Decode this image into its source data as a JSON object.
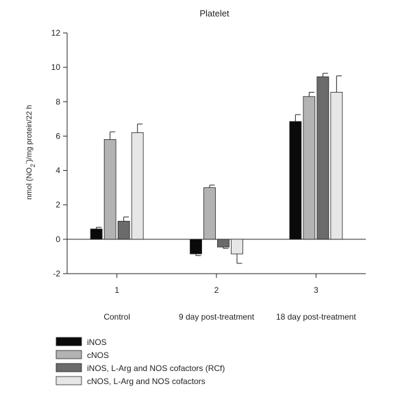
{
  "chart_data": {
    "type": "bar",
    "title": "Platelet",
    "xlabel": "",
    "ylabel_prefix": "nmol (NO",
    "ylabel_sub": "2",
    "ylabel_sup": "-",
    "ylabel_suffix": ")/mg protein/22 h",
    "ylim": [
      -2,
      12
    ],
    "yticks": [
      -2,
      0,
      2,
      4,
      6,
      8,
      10,
      12
    ],
    "categories": [
      "1",
      "2",
      "3"
    ],
    "category_sublabels": [
      "Control",
      "9 day post-treatment",
      "18 day post-treatment"
    ],
    "grid": false,
    "legend_position": "bottom-left",
    "series": [
      {
        "name": "iNOS",
        "color": "#0a0a0a",
        "values": [
          0.6,
          -0.85,
          6.85
        ],
        "errors": [
          0.1,
          0.1,
          0.4
        ]
      },
      {
        "name": "cNOS",
        "color": "#b3b3b3",
        "values": [
          5.8,
          3.0,
          8.3
        ],
        "errors": [
          0.45,
          0.15,
          0.25
        ]
      },
      {
        "name": "iNOS, L-Arg and NOS cofactors (RCf)",
        "color": "#6b6b6b",
        "values": [
          1.05,
          -0.45,
          9.45
        ],
        "errors": [
          0.25,
          0.08,
          0.2
        ]
      },
      {
        "name": "cNOS, L-Arg and NOS cofactors",
        "color": "#e6e6e6",
        "values": [
          6.2,
          -0.85,
          8.55
        ],
        "errors": [
          0.5,
          0.55,
          0.95
        ]
      }
    ]
  }
}
